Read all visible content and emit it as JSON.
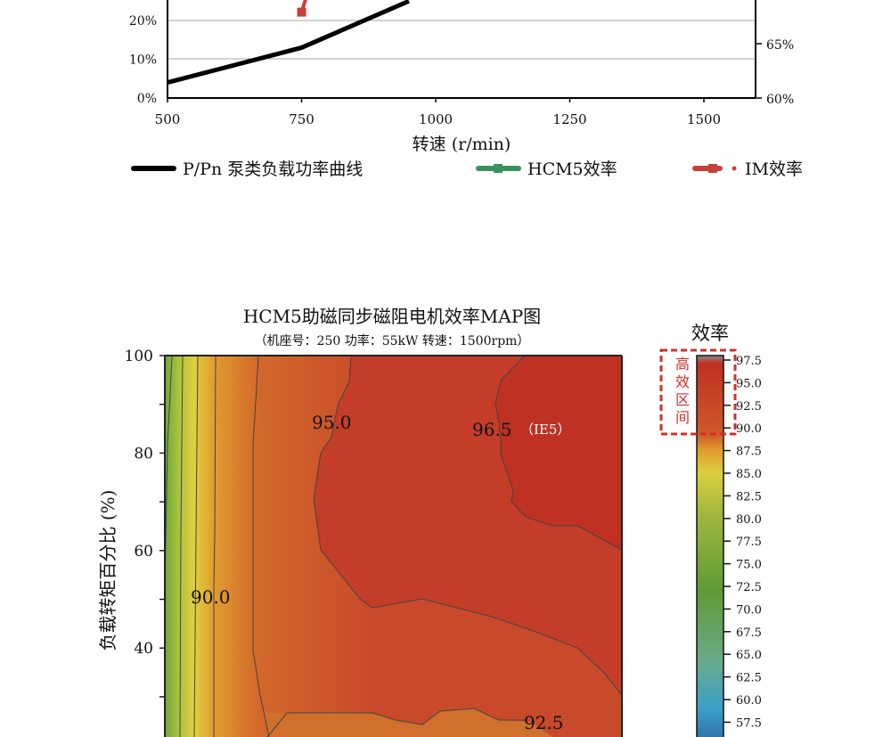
{
  "chart_data": [
    {
      "type": "line",
      "xlabel": "转速 (r/min)",
      "x_ticks": [
        500,
        750,
        1000,
        1250,
        1500
      ],
      "xlim": [
        500,
        1600
      ],
      "y_left_ticks": [
        "0%",
        "10%",
        "20%"
      ],
      "y_left_range": [
        0,
        25
      ],
      "y_right_ticks": [
        "60%",
        "65%"
      ],
      "y_right_range": [
        60,
        70
      ],
      "grid": true,
      "legend_position": "bottom",
      "series": [
        {
          "name": "P/Pn 泵类负载功率曲线",
          "axis": "left",
          "color": "#000000",
          "x": [
            500,
            750,
            950
          ],
          "y": [
            4,
            13,
            25
          ]
        },
        {
          "name": "HCM5效率",
          "axis": "right",
          "color": "#3a9160",
          "x": [],
          "y": []
        },
        {
          "name": "IM效率",
          "axis": "right",
          "color": "#c9403a",
          "x": [
            750,
            760
          ],
          "y": [
            67.9,
            69.5
          ]
        }
      ]
    },
    {
      "type": "heatmap",
      "title": "HCM5助磁同步磁阻电机效率MAP图",
      "subtitle": "（机座号：250  功率：55kW  转速：1500rpm）",
      "ylabel": "负载转矩百分比 (%)",
      "y_ticks": [
        100,
        80,
        60,
        40
      ],
      "contour_labels": [
        {
          "value": "95.0"
        },
        {
          "value": "96.5",
          "note": "（IE5）"
        },
        {
          "value": "90.0"
        },
        {
          "value": "92.5"
        }
      ],
      "colorbar": {
        "title": "效率",
        "ticks": [
          "97.5",
          "95.0",
          "92.5",
          "90.0",
          "87.5",
          "85.0",
          "82.5",
          "80.0",
          "77.5",
          "75.0",
          "72.5",
          "70.0",
          "67.5",
          "65.0",
          "62.5",
          "60.0",
          "57.5"
        ],
        "annotation": "高效区间",
        "annotation_color": "#d0302a"
      }
    }
  ]
}
